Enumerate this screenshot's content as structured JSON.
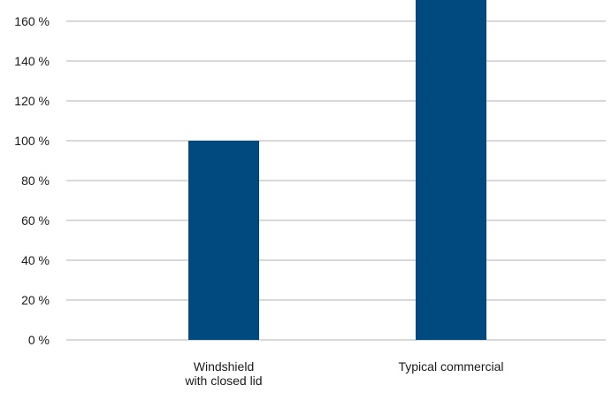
{
  "chart_data": {
    "type": "bar",
    "categories": [
      "Windshield with closed lid",
      "Typical commercial"
    ],
    "category_lines": [
      [
        "Windshield",
        "with closed lid"
      ],
      [
        "Typical commercial"
      ]
    ],
    "values": [
      100,
      180
    ],
    "y_ticks": [
      0,
      20,
      40,
      60,
      80,
      100,
      120,
      140,
      160
    ],
    "y_tick_labels": [
      "0 %",
      "20 %",
      "40 %",
      "60 %",
      "80 %",
      "100 %",
      "120 %",
      "140 %",
      "160 %"
    ],
    "ylim": [
      0,
      170
    ],
    "grid": true,
    "title": "",
    "xlabel": "",
    "ylabel": "",
    "bar_color": "#004A80",
    "grid_color": "#B3B3B3",
    "text_color": "#1A1A1A"
  }
}
